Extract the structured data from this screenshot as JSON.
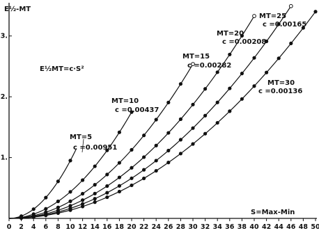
{
  "chart_data": {
    "type": "line",
    "ylabel": "E½-MT",
    "xlabel": "S=Max-Min",
    "equation": "E½MT=c·S²",
    "xlim": [
      0,
      50
    ],
    "ylim": [
      0,
      3.5
    ],
    "x_ticks": [
      0,
      2,
      4,
      6,
      8,
      10,
      12,
      14,
      16,
      18,
      20,
      22,
      24,
      26,
      28,
      30,
      32,
      34,
      36,
      38,
      40,
      42,
      44,
      46,
      48,
      50
    ],
    "y_ticks": [
      {
        "value": 1,
        "label": "1."
      },
      {
        "value": 2,
        "label": "2."
      },
      {
        "value": 3,
        "label": "3."
      }
    ],
    "grid": false,
    "series": [
      {
        "label_mt": "MT=5",
        "label_c": "c =0.00951",
        "c": 0.00951,
        "x_max": 11,
        "points": [
          [
            2,
            0.038
          ],
          [
            4,
            0.152
          ],
          [
            6,
            0.342
          ],
          [
            8,
            0.609
          ],
          [
            10,
            0.951
          ]
        ]
      },
      {
        "label_mt": "MT=10",
        "label_c": "c =0.00437",
        "c": 0.00437,
        "x_max": 20,
        "points": [
          [
            2,
            0.017
          ],
          [
            4,
            0.07
          ],
          [
            6,
            0.157
          ],
          [
            8,
            0.28
          ],
          [
            10,
            0.437
          ],
          [
            12,
            0.629
          ],
          [
            14,
            0.857
          ],
          [
            16,
            1.119
          ],
          [
            18,
            1.416
          ],
          [
            20,
            1.748
          ]
        ]
      },
      {
        "label_mt": "MT=15",
        "label_c": "c =0.00282",
        "c": 0.00282,
        "x_max": 30,
        "points": [
          [
            2,
            0.011
          ],
          [
            4,
            0.045
          ],
          [
            6,
            0.102
          ],
          [
            8,
            0.18
          ],
          [
            10,
            0.282
          ],
          [
            12,
            0.406
          ],
          [
            14,
            0.553
          ],
          [
            16,
            0.722
          ],
          [
            18,
            0.914
          ],
          [
            20,
            1.128
          ],
          [
            22,
            1.365
          ],
          [
            24,
            1.624
          ],
          [
            26,
            1.906
          ],
          [
            28,
            2.211
          ],
          [
            30,
            2.538
          ]
        ]
      },
      {
        "label_mt": "MT=20",
        "label_c": "c =0.00208",
        "c": 0.00208,
        "x_max": 40,
        "points": [
          [
            2,
            0.008
          ],
          [
            4,
            0.033
          ],
          [
            6,
            0.075
          ],
          [
            8,
            0.133
          ],
          [
            10,
            0.208
          ],
          [
            12,
            0.3
          ],
          [
            14,
            0.408
          ],
          [
            16,
            0.532
          ],
          [
            18,
            0.674
          ],
          [
            20,
            0.832
          ],
          [
            22,
            1.007
          ],
          [
            24,
            1.198
          ],
          [
            26,
            1.406
          ],
          [
            28,
            1.631
          ],
          [
            30,
            1.872
          ],
          [
            32,
            2.13
          ],
          [
            34,
            2.404
          ],
          [
            36,
            2.696
          ],
          [
            38,
            3.004
          ],
          [
            40,
            3.328
          ]
        ]
      },
      {
        "label_mt": "MT=25",
        "label_c": "c =0.00165",
        "c": 0.00165,
        "x_max": 46,
        "points": [
          [
            2,
            0.007
          ],
          [
            4,
            0.026
          ],
          [
            6,
            0.059
          ],
          [
            8,
            0.106
          ],
          [
            10,
            0.165
          ],
          [
            12,
            0.238
          ],
          [
            14,
            0.323
          ],
          [
            16,
            0.422
          ],
          [
            18,
            0.535
          ],
          [
            20,
            0.66
          ],
          [
            22,
            0.799
          ],
          [
            24,
            0.95
          ],
          [
            26,
            1.115
          ],
          [
            28,
            1.294
          ],
          [
            30,
            1.485
          ],
          [
            32,
            1.69
          ],
          [
            34,
            1.907
          ],
          [
            36,
            2.138
          ],
          [
            38,
            2.383
          ],
          [
            40,
            2.64
          ],
          [
            42,
            2.911
          ],
          [
            44,
            3.194
          ],
          [
            46,
            3.491
          ]
        ]
      },
      {
        "label_mt": "MT=30",
        "label_c": "c =0.00136",
        "c": 0.00136,
        "x_max": 50,
        "points": [
          [
            2,
            0.005
          ],
          [
            4,
            0.022
          ],
          [
            6,
            0.049
          ],
          [
            8,
            0.087
          ],
          [
            10,
            0.136
          ],
          [
            12,
            0.196
          ],
          [
            14,
            0.267
          ],
          [
            16,
            0.348
          ],
          [
            18,
            0.441
          ],
          [
            20,
            0.544
          ],
          [
            22,
            0.658
          ],
          [
            24,
            0.783
          ],
          [
            26,
            0.919
          ],
          [
            28,
            1.066
          ],
          [
            30,
            1.224
          ],
          [
            32,
            1.393
          ],
          [
            34,
            1.572
          ],
          [
            36,
            1.763
          ],
          [
            38,
            1.964
          ],
          [
            40,
            2.176
          ],
          [
            42,
            2.399
          ],
          [
            44,
            2.633
          ],
          [
            46,
            2.878
          ],
          [
            48,
            3.133
          ],
          [
            50,
            3.4
          ]
        ]
      }
    ]
  }
}
